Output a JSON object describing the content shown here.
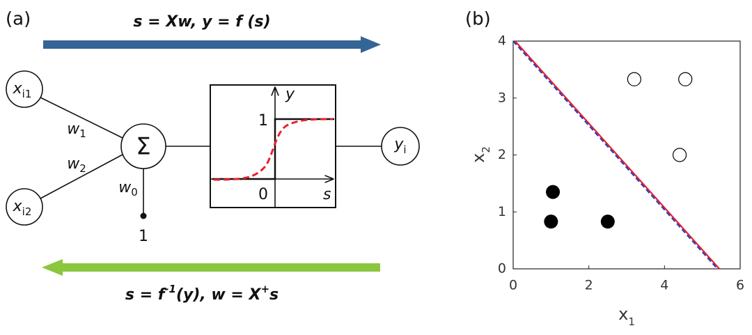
{
  "panel_a": {
    "label": "(a)",
    "forward_formula": "s = Xw, y = f (s)",
    "backward_formula": [
      "s = f",
      "-1",
      "(y), w = X",
      "+",
      "s"
    ],
    "inputs": [
      {
        "text": "x",
        "sub": "i1"
      },
      {
        "text": "x",
        "sub": "i2"
      }
    ],
    "weights": [
      {
        "text": "w",
        "sub": "1"
      },
      {
        "text": "w",
        "sub": "2"
      },
      {
        "text": "w",
        "sub": "0"
      }
    ],
    "bias": "1",
    "sum": "Σ",
    "activation": {
      "y_axis": "y",
      "x_axis": "s",
      "one": "1",
      "zero": "0"
    },
    "output": {
      "text": "y",
      "sub": "i"
    }
  },
  "chart_data": {
    "type": "scatter",
    "label": "(b)",
    "x_label": {
      "text": "x",
      "sub": "1"
    },
    "y_label": {
      "text": "x",
      "sub": "2"
    },
    "xlim": [
      0,
      6
    ],
    "ylim": [
      0,
      4
    ],
    "xticks": [
      0,
      2,
      4,
      6
    ],
    "yticks": [
      0,
      1,
      2,
      3,
      4
    ],
    "grid": false,
    "series": [
      {
        "mode": "markers",
        "marker": "open",
        "color": "#000000",
        "x": [
          3.2,
          4.55,
          4.4
        ],
        "values": [
          3.33,
          3.33,
          2.0
        ]
      },
      {
        "mode": "markers",
        "marker": "filled",
        "color": "#000000",
        "x": [
          1.05,
          1.0,
          2.5
        ],
        "values": [
          1.35,
          0.83,
          0.83
        ]
      },
      {
        "mode": "line",
        "dash": false,
        "color": "#e8202a",
        "x": [
          0.05,
          5.45
        ],
        "values": [
          4,
          0
        ]
      },
      {
        "mode": "line",
        "dash": true,
        "color": "#2a3fbf",
        "x": [
          0,
          5.4
        ],
        "values": [
          4,
          0
        ]
      }
    ]
  }
}
